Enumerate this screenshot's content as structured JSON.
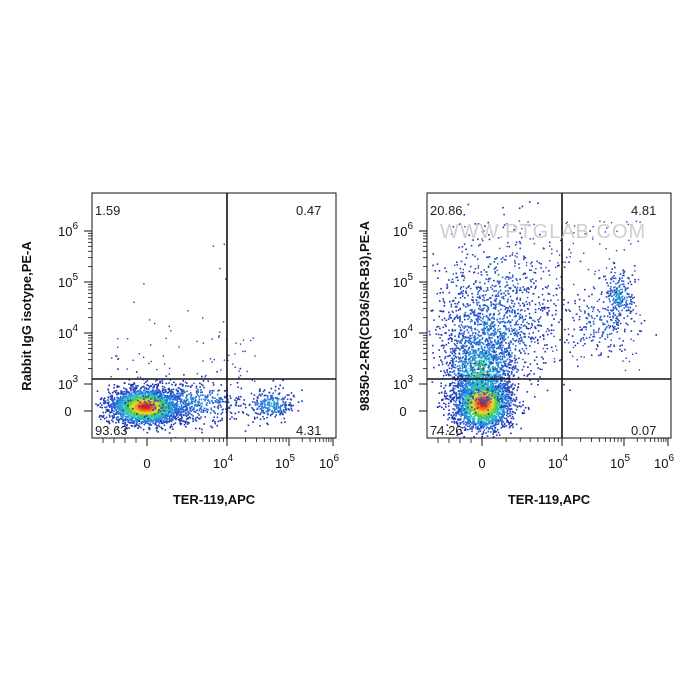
{
  "watermark": "WWW.PTGLAB.COM",
  "colors": {
    "gate": "#111111",
    "axis": "#111111",
    "background": "#ffffff"
  },
  "chart_data": [
    {
      "type": "scatter",
      "title": "",
      "xlabel": "TER-119,APC",
      "ylabel": "Rabbit IgG isotype,PE-A",
      "x_ticks": [
        {
          "v": "0",
          "base": "0",
          "exp": ""
        },
        {
          "v": "10^4",
          "base": "10",
          "exp": "4"
        },
        {
          "v": "10^5",
          "base": "10",
          "exp": "5"
        },
        {
          "v": "10^6",
          "base": "10",
          "exp": "6"
        }
      ],
      "y_ticks": [
        {
          "v": "0",
          "base": "0",
          "exp": ""
        },
        {
          "v": "10^3",
          "base": "10",
          "exp": "3"
        },
        {
          "v": "10^4",
          "base": "10",
          "exp": "4"
        },
        {
          "v": "10^5",
          "base": "10",
          "exp": "5"
        },
        {
          "v": "10^6",
          "base": "10",
          "exp": "6"
        }
      ],
      "scale": "biexponential",
      "gate": {
        "x": "10^4",
        "y": "10^3"
      },
      "quadrants": {
        "Q1": "1.59",
        "Q2": "0.47",
        "Q3": "4.31",
        "Q4": "93.63"
      },
      "populations": [
        {
          "x": "0",
          "y": "0",
          "share": 93.63
        },
        {
          "x": "5*10^4",
          "y": "0",
          "share": 4.31
        }
      ]
    },
    {
      "type": "scatter",
      "title": "",
      "xlabel": "TER-119,APC",
      "ylabel": "98350-2-RR(CD36/SR-B3),PE-A",
      "x_ticks": [
        {
          "v": "0",
          "base": "0",
          "exp": ""
        },
        {
          "v": "10^4",
          "base": "10",
          "exp": "4"
        },
        {
          "v": "10^5",
          "base": "10",
          "exp": "5"
        },
        {
          "v": "10^6",
          "base": "10",
          "exp": "6"
        }
      ],
      "y_ticks": [
        {
          "v": "0",
          "base": "0",
          "exp": ""
        },
        {
          "v": "10^3",
          "base": "10",
          "exp": "3"
        },
        {
          "v": "10^4",
          "base": "10",
          "exp": "4"
        },
        {
          "v": "10^5",
          "base": "10",
          "exp": "5"
        },
        {
          "v": "10^6",
          "base": "10",
          "exp": "6"
        }
      ],
      "scale": "biexponential",
      "gate": {
        "x": "10^4",
        "y": "10^3"
      },
      "quadrants": {
        "Q1": "20.86",
        "Q2": "4.81",
        "Q3": "0.07",
        "Q4": "74.26"
      },
      "populations": [
        {
          "x": "0",
          "y": "0",
          "share": 74.26
        },
        {
          "x": "0",
          "y": "10^3-10^5",
          "share": 20.86
        },
        {
          "x": "10^5",
          "y": "3*10^4",
          "share": 4.81
        }
      ]
    }
  ]
}
